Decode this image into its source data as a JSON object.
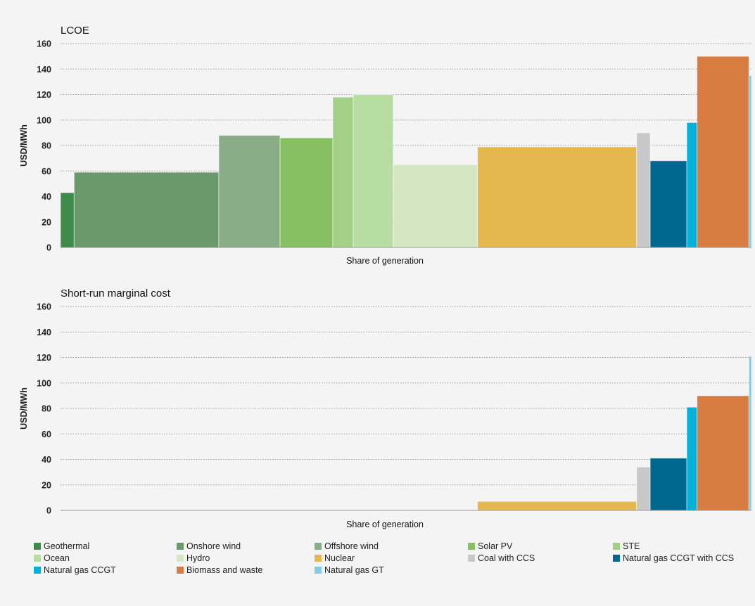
{
  "chart_data": [
    {
      "type": "bar",
      "title": "LCOE",
      "xlabel": "Share of generation",
      "ylabel": "USD/MWh",
      "ylim": [
        0,
        160
      ],
      "yticks": [
        0,
        20,
        40,
        60,
        80,
        100,
        120,
        140,
        160
      ],
      "grid": "horizontal dotted",
      "categories": [
        "Geothermal",
        "Onshore wind",
        "Offshore wind",
        "Solar PV",
        "STE",
        "Ocean",
        "Hydro",
        "Nuclear",
        "Coal with CCS",
        "Natural gas CCGT with CCS",
        "Natural gas CCGT",
        "Biomass and waste",
        "Natural gas GT"
      ],
      "share_of_generation": [
        1.6,
        17.0,
        7.2,
        6.2,
        2.4,
        4.7,
        9.9,
        18.7,
        1.6,
        4.3,
        1.2,
        6.1,
        0.3
      ],
      "values": [
        43,
        59,
        88,
        86,
        118,
        120,
        65,
        79,
        90,
        68,
        98,
        150,
        135
      ]
    },
    {
      "type": "bar",
      "title": "Short-run marginal cost",
      "xlabel": "Share of generation",
      "ylabel": "USD/MWh",
      "ylim": [
        0,
        160
      ],
      "yticks": [
        0,
        20,
        40,
        60,
        80,
        100,
        120,
        140,
        160
      ],
      "grid": "horizontal dotted",
      "categories": [
        "Geothermal",
        "Onshore wind",
        "Offshore wind",
        "Solar PV",
        "STE",
        "Ocean",
        "Hydro",
        "Nuclear",
        "Coal with CCS",
        "Natural gas CCGT with CCS",
        "Natural gas CCGT",
        "Biomass and waste",
        "Natural gas GT"
      ],
      "share_of_generation": [
        1.6,
        17.0,
        7.2,
        6.2,
        2.4,
        4.7,
        9.9,
        18.7,
        1.6,
        4.3,
        1.2,
        6.1,
        0.3
      ],
      "values": [
        0,
        0,
        0,
        0,
        0,
        0,
        0,
        7,
        34,
        41,
        81,
        90,
        121
      ]
    }
  ],
  "legend": {
    "placement": "bottom",
    "items": [
      {
        "label": "Geothermal",
        "color": "#3e8a4a"
      },
      {
        "label": "Onshore wind",
        "color": "#6a9a6c"
      },
      {
        "label": "Offshore wind",
        "color": "#8aad88"
      },
      {
        "label": "Solar PV",
        "color": "#86c062"
      },
      {
        "label": "STE",
        "color": "#a2d086"
      },
      {
        "label": "Ocean",
        "color": "#b8dda2"
      },
      {
        "label": "Hydro",
        "color": "#d3e8c2"
      },
      {
        "label": "Nuclear",
        "color": "#e5b84f"
      },
      {
        "label": "Coal with CCS",
        "color": "#c8c8c8"
      },
      {
        "label": "Natural gas CCGT with CCS",
        "color": "#006890"
      },
      {
        "label": "Natural gas CCGT",
        "color": "#00b2d8"
      },
      {
        "label": "Biomass and waste",
        "color": "#d97c42"
      },
      {
        "label": "Natural gas GT",
        "color": "#80ccea"
      }
    ]
  }
}
